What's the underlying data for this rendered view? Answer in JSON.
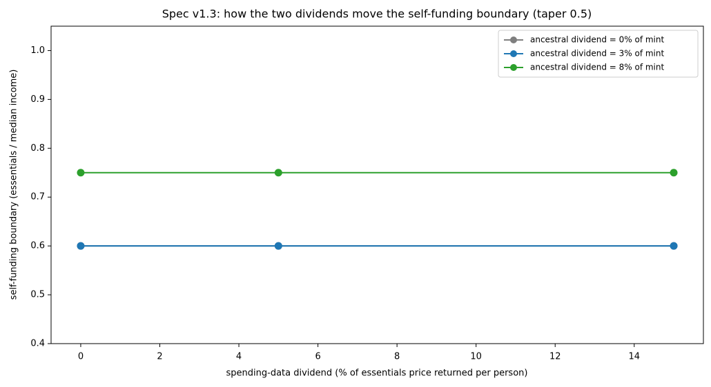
{
  "chart_data": {
    "type": "line",
    "title": "Spec v1.3: how the two dividends move the self-funding boundary (taper 0.5)",
    "x_label": "spending-data dividend (% of essentials price returned per person)",
    "y_label": "self-funding boundary (essentials / median income)",
    "x": [
      0,
      5,
      15
    ],
    "series": [
      {
        "name": "ancestral dividend = 0% of mint",
        "color": "#7f7f7f",
        "values": [
          0.6,
          0.6,
          0.6
        ]
      },
      {
        "name": "ancestral dividend = 3% of mint",
        "color": "#1f77b4",
        "values": [
          0.6,
          0.6,
          0.6
        ]
      },
      {
        "name": "ancestral dividend = 8% of mint",
        "color": "#2ca02c",
        "values": [
          0.75,
          0.75,
          0.75
        ]
      }
    ],
    "xlim": [
      -0.75,
      15.75
    ],
    "xticks": [
      0,
      2,
      4,
      6,
      8,
      10,
      12,
      14
    ],
    "ylim": [
      0.4,
      1.05
    ],
    "yticks": [
      0.4,
      0.5,
      0.6,
      0.7,
      0.8,
      0.9,
      {
        "value": 1.0,
        "label": "1.0"
      }
    ],
    "grid": false,
    "legend": "upper right",
    "markers": true
  }
}
